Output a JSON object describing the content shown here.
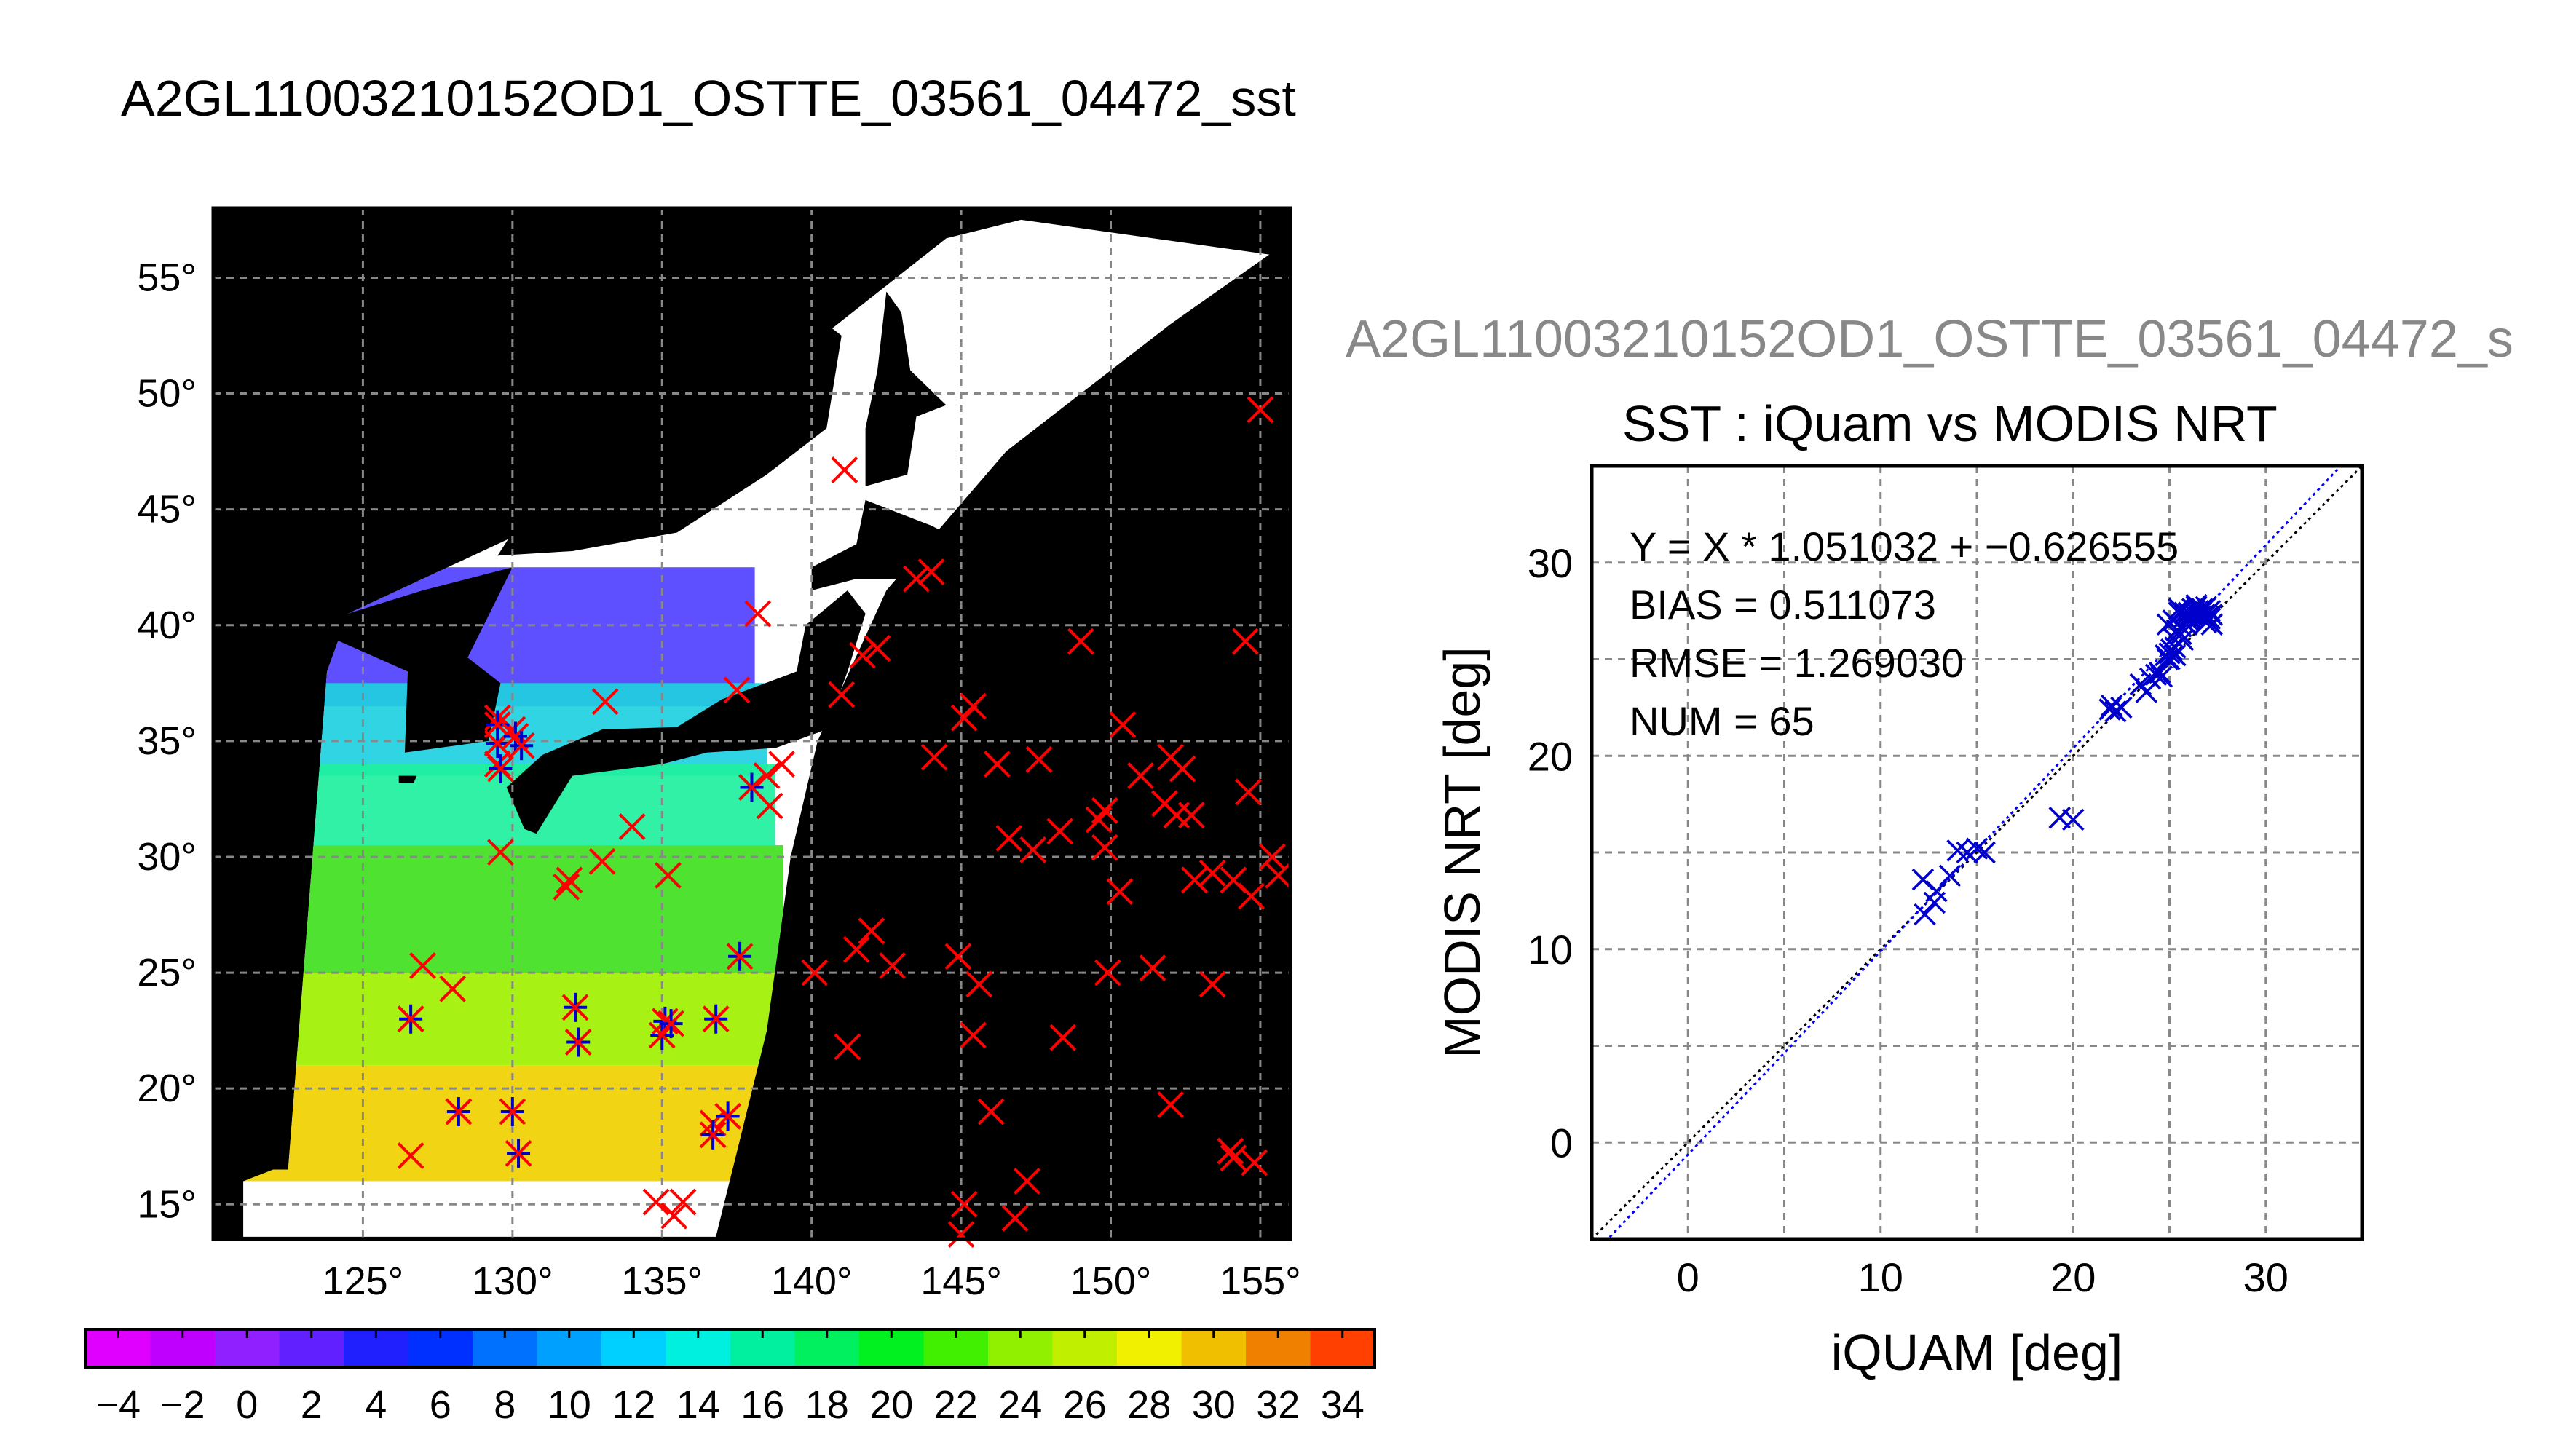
{
  "main_title": "A2GL11003210152OD1_OSTTE_03561_04472_sst",
  "scatter_title_clipped": "A2GL11003210152OD1_OSTTE_03561_04472_s",
  "colors": {
    "background": "#ffffff",
    "map_land": "#000000",
    "map_open_ocean": "#000000",
    "swath_cloud": "#ffffff",
    "grid": "#888888",
    "marker_in_situ": "#ff0000",
    "marker_matchup": "#0000cc",
    "regression_line": "#0000ff",
    "one_to_one_line": "#000000"
  },
  "chart_data": [
    {
      "type": "map",
      "title": "A2GL11003210152OD1_OSTTE_03561_04472_sst",
      "xlim": [
        120,
        156
      ],
      "ylim": [
        13.5,
        58
      ],
      "x_ticks": [
        "125°",
        "130°",
        "135°",
        "140°",
        "145°",
        "150°",
        "155°"
      ],
      "x_tick_values": [
        125,
        130,
        135,
        140,
        145,
        150,
        155
      ],
      "y_ticks": [
        "15°",
        "20°",
        "25°",
        "30°",
        "35°",
        "40°",
        "45°",
        "50°",
        "55°"
      ],
      "y_tick_values": [
        15,
        20,
        25,
        30,
        35,
        40,
        45,
        50,
        55
      ],
      "grid": true,
      "sst_zones": [
        {
          "lat_min": 36.5,
          "lat_max": 42.5,
          "sst": 3,
          "color": "#5040ff"
        },
        {
          "lat_min": 33.5,
          "lat_max": 37.5,
          "sst": 12,
          "color": "#20d0e0"
        },
        {
          "lat_min": 30.5,
          "lat_max": 34,
          "sst": 16,
          "color": "#20f0a0"
        },
        {
          "lat_min": 25,
          "lat_max": 30.5,
          "sst": 22,
          "color": "#40e020"
        },
        {
          "lat_min": 21,
          "lat_max": 25,
          "sst": 25,
          "color": "#a0f000"
        },
        {
          "lat_min": 16,
          "lat_max": 21,
          "sst": 28,
          "color": "#f0d000"
        }
      ],
      "in_situ_points": [
        [
          126.6,
          23.0
        ],
        [
          127.0,
          25.3
        ],
        [
          128.0,
          24.3
        ],
        [
          126.6,
          17.1
        ],
        [
          128.2,
          19.0
        ],
        [
          129.5,
          36.0
        ],
        [
          129.5,
          34.0
        ],
        [
          130.0,
          35.5
        ],
        [
          129.6,
          30.2
        ],
        [
          131.9,
          29.0
        ],
        [
          131.8,
          28.7
        ],
        [
          133.0,
          29.8
        ],
        [
          133.1,
          36.7
        ],
        [
          134.0,
          31.3
        ],
        [
          135.2,
          29.2
        ],
        [
          134.8,
          15.1
        ],
        [
          135.4,
          14.5
        ],
        [
          135.7,
          15.1
        ],
        [
          136.7,
          18.5
        ],
        [
          137.5,
          37.2
        ],
        [
          138.5,
          33.5
        ],
        [
          138.6,
          32.2
        ],
        [
          138.2,
          40.5
        ],
        [
          139.0,
          34.0
        ],
        [
          141.0,
          37.0
        ],
        [
          141.1,
          46.7
        ],
        [
          141.7,
          38.7
        ],
        [
          142.2,
          39.0
        ],
        [
          143.5,
          42.0
        ],
        [
          144.0,
          42.3
        ],
        [
          140.1,
          25.0
        ],
        [
          141.2,
          21.8
        ],
        [
          141.5,
          26.0
        ],
        [
          142.0,
          26.8
        ],
        [
          142.7,
          25.3
        ],
        [
          144.1,
          34.3
        ],
        [
          144.9,
          25.7
        ],
        [
          145.4,
          36.5
        ],
        [
          145.1,
          36.0
        ],
        [
          145.6,
          24.5
        ],
        [
          145.4,
          22.3
        ],
        [
          145.1,
          15.0
        ],
        [
          145.0,
          13.7
        ],
        [
          146.0,
          19.0
        ],
        [
          146.2,
          34.0
        ],
        [
          146.6,
          30.8
        ],
        [
          146.8,
          14.4
        ],
        [
          147.2,
          16.0
        ],
        [
          147.4,
          30.3
        ],
        [
          147.6,
          34.2
        ],
        [
          148.4,
          22.2
        ],
        [
          148.3,
          31.1
        ],
        [
          149.0,
          39.3
        ],
        [
          149.6,
          31.6
        ],
        [
          149.8,
          30.4
        ],
        [
          149.8,
          32.0
        ],
        [
          149.9,
          25.0
        ],
        [
          150.4,
          35.7
        ],
        [
          150.3,
          28.5
        ],
        [
          151.0,
          33.5
        ],
        [
          151.4,
          25.2
        ],
        [
          151.8,
          32.3
        ],
        [
          152.0,
          34.3
        ],
        [
          152.2,
          31.8
        ],
        [
          152.0,
          19.3
        ],
        [
          152.4,
          33.8
        ],
        [
          152.7,
          31.8
        ],
        [
          152.8,
          29.0
        ],
        [
          153.4,
          24.5
        ],
        [
          153.4,
          29.3
        ],
        [
          154.0,
          17.3
        ],
        [
          154.1,
          29.0
        ],
        [
          154.1,
          17.0
        ],
        [
          154.5,
          39.3
        ],
        [
          154.6,
          32.8
        ],
        [
          154.7,
          28.3
        ],
        [
          154.8,
          16.8
        ],
        [
          155.0,
          49.3
        ],
        [
          155.4,
          30.0
        ],
        [
          155.6,
          29.2
        ]
      ],
      "matchup_points": [
        [
          126.6,
          23.0
        ],
        [
          128.2,
          19.0
        ],
        [
          129.5,
          35.7
        ],
        [
          129.5,
          34.9
        ],
        [
          129.6,
          33.8
        ],
        [
          130.1,
          35.2
        ],
        [
          130.3,
          34.8
        ],
        [
          130.0,
          19.0
        ],
        [
          130.2,
          17.2
        ],
        [
          132.1,
          23.5
        ],
        [
          132.2,
          22.0
        ],
        [
          135.1,
          22.9
        ],
        [
          135.0,
          22.3
        ],
        [
          135.3,
          22.8
        ],
        [
          136.8,
          23.0
        ],
        [
          136.7,
          18.0
        ],
        [
          137.2,
          18.8
        ],
        [
          137.6,
          25.7
        ],
        [
          138.0,
          33.0
        ]
      ]
    },
    {
      "type": "scatter",
      "title": "SST : iQuam vs MODIS NRT",
      "xlabel": "iQUAM [deg]",
      "ylabel": "MODIS NRT [deg]",
      "xlim": [
        -5,
        35
      ],
      "ylim": [
        -5,
        35
      ],
      "x_ticks": [
        "0",
        "10",
        "20",
        "30"
      ],
      "x_tick_values": [
        0,
        10,
        20,
        30
      ],
      "y_ticks": [
        "0",
        "10",
        "20",
        "30"
      ],
      "y_tick_values": [
        0,
        10,
        20,
        30
      ],
      "grid": true,
      "annotations": [
        "Y = X * 1.051032 + −0.626555",
        "BIAS = 0.511073",
        "RMSE = 1.269030",
        "NUM = 65"
      ],
      "regression": {
        "slope": 1.051032,
        "intercept": -0.626555
      },
      "one_to_one": true,
      "series": [
        {
          "x": [
            12.2,
            12.3,
            12.8,
            12.9,
            13.6,
            14.0,
            14.5,
            15.0,
            15.4,
            19.3,
            20.0,
            21.9,
            22.0,
            22.2,
            22.5,
            23.5,
            23.8,
            24.0,
            24.3,
            24.5,
            24.6,
            24.8,
            24.9,
            25.0,
            25.1,
            25.2,
            25.3,
            25.4,
            25.5,
            25.6,
            25.7,
            25.8,
            25.9,
            26.0,
            26.1,
            26.2,
            26.3,
            26.4,
            26.5,
            26.6,
            26.7,
            26.8,
            26.9,
            27.0,
            27.1,
            27.2,
            25.0,
            25.3,
            25.6,
            26.0,
            26.3,
            26.6,
            26.9,
            27.0,
            27.2,
            24.9,
            25.2,
            25.5,
            26.1,
            26.4,
            26.7,
            27.1,
            25.8,
            26.2,
            26.8
          ],
          "y": [
            13.6,
            11.8,
            12.4,
            13.0,
            13.8,
            15.1,
            15.0,
            15.2,
            15.0,
            16.8,
            16.7,
            22.4,
            22.6,
            22.3,
            22.5,
            23.7,
            23.3,
            24.0,
            24.2,
            24.3,
            24.1,
            25.2,
            26.8,
            25.0,
            25.5,
            27.0,
            25.6,
            26.5,
            27.6,
            26.3,
            26.0,
            27.2,
            26.8,
            27.4,
            27.1,
            27.6,
            27.3,
            27.8,
            27.5,
            27.2,
            27.6,
            27.3,
            27.7,
            27.0,
            27.5,
            27.3,
            25.3,
            25.2,
            26.7,
            27.0,
            27.5,
            27.4,
            26.9,
            27.2,
            26.8,
            25.0,
            26.1,
            27.4,
            27.3,
            27.7,
            27.5,
            27.1,
            27.4,
            27.6,
            27.2
          ]
        }
      ]
    },
    {
      "type": "colorbar",
      "tick_labels": [
        "−4",
        "−2",
        "0",
        "2",
        "4",
        "6",
        "8",
        "10",
        "12",
        "14",
        "16",
        "18",
        "20",
        "22",
        "24",
        "26",
        "28",
        "30",
        "32",
        "34"
      ],
      "range": [
        -5,
        35
      ],
      "colors": [
        "#e000ff",
        "#c000ff",
        "#9020ff",
        "#6020ff",
        "#2020ff",
        "#0030ff",
        "#0070ff",
        "#00a0ff",
        "#00d0ff",
        "#00f0e0",
        "#00f0a0",
        "#00f060",
        "#00f020",
        "#40f000",
        "#90f000",
        "#c0f000",
        "#f0f000",
        "#f0c000",
        "#f08000",
        "#ff4000"
      ]
    }
  ]
}
